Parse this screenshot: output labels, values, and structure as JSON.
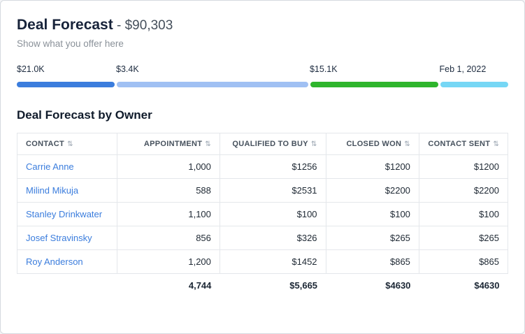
{
  "header": {
    "title": "Deal Forecast",
    "amount": " - $90,303",
    "subtitle": "Show what you offer here"
  },
  "icons": {
    "sort": "⇅"
  },
  "progress": {
    "segments": [
      {
        "label": "$21.0K",
        "width_pct": 20.2,
        "color": "#3b7ddd"
      },
      {
        "label": "$3.4K",
        "width_pct": 39.4,
        "color": "#a0c0f3"
      },
      {
        "label": "$15.1K",
        "width_pct": 26.4,
        "color": "#2eb52c"
      },
      {
        "label": "Feb 1, 2022",
        "width_pct": 14.0,
        "color": "#76d7f5"
      }
    ]
  },
  "table": {
    "title": "Deal Forecast by Owner",
    "columns": [
      {
        "label": "Contact"
      },
      {
        "label": "Appointment"
      },
      {
        "label": "Qualified to buy"
      },
      {
        "label": "Closed won"
      },
      {
        "label": "Contact sent"
      }
    ],
    "rows": [
      {
        "contact": "Carrie Anne",
        "values": [
          "1,000",
          "$1256",
          "$1200",
          "$1200"
        ]
      },
      {
        "contact": "Milind Mikuja",
        "values": [
          "588",
          "$2531",
          "$2200",
          "$2200"
        ]
      },
      {
        "contact": "Stanley Drinkwater",
        "values": [
          "1,100",
          "$100",
          "$100",
          "$100"
        ]
      },
      {
        "contact": "Josef Stravinsky",
        "values": [
          "856",
          "$326",
          "$265",
          "$265"
        ]
      },
      {
        "contact": "Roy Anderson",
        "values": [
          "1,200",
          "$1452",
          "$865",
          "$865"
        ]
      }
    ],
    "totals": [
      "4,744",
      "$5,665",
      "$4630",
      "$4630"
    ]
  }
}
